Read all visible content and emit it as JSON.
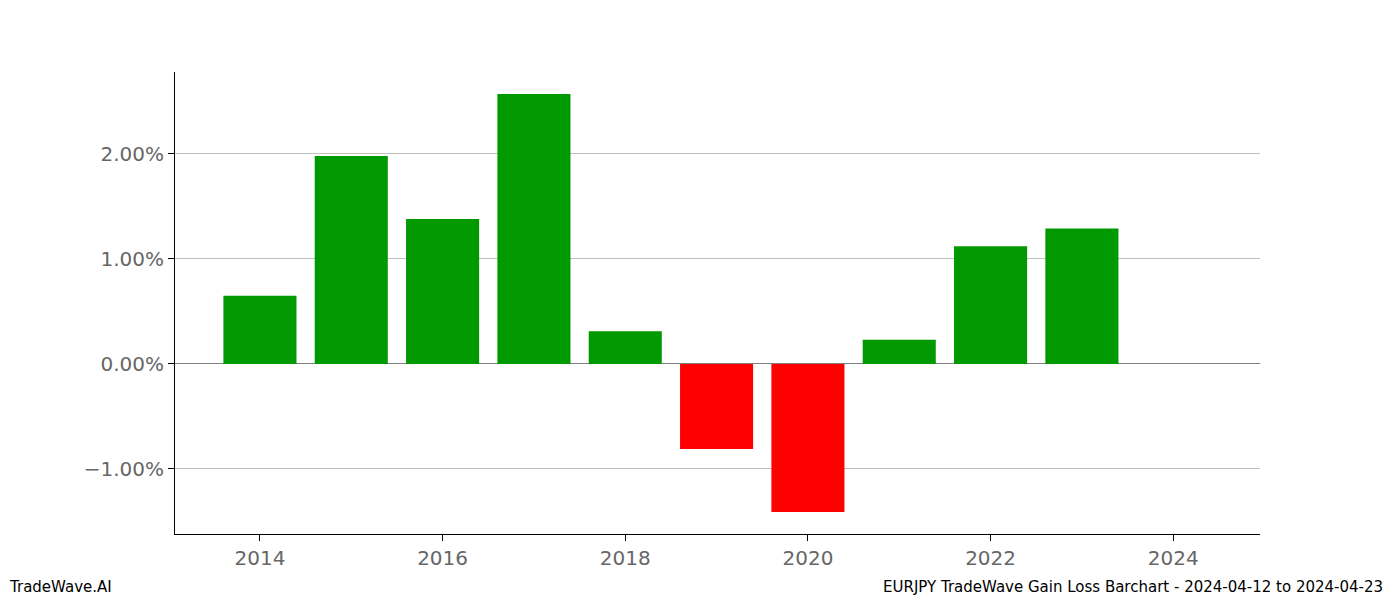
{
  "chart_data": {
    "type": "bar",
    "x": [
      2014,
      2015,
      2016,
      2017,
      2018,
      2019,
      2020,
      2021,
      2022,
      2023
    ],
    "values": [
      0.65,
      1.98,
      1.38,
      2.57,
      0.31,
      -0.81,
      -1.41,
      0.23,
      1.12,
      1.29
    ],
    "colors": [
      "#009900",
      "#009900",
      "#009900",
      "#009900",
      "#009900",
      "#ff0000",
      "#ff0000",
      "#009900",
      "#009900",
      "#009900"
    ],
    "xlim": [
      2013.07,
      2024.95
    ],
    "xticks": [
      2014,
      2016,
      2018,
      2020,
      2022,
      2024
    ],
    "ylim": [
      -1.62,
      2.78
    ],
    "yticks": [
      {
        "value": -1,
        "label": "−1.00%"
      },
      {
        "value": 0,
        "label": "0.00%"
      },
      {
        "value": 1,
        "label": "1.00%"
      },
      {
        "value": 2,
        "label": "2.00%"
      }
    ],
    "grid": "y",
    "annotations": [
      {
        "text": "TradeWave.AI"
      },
      {
        "text": "EURJPY TradeWave Gain Loss Barchart - 2024-04-12 to 2024-04-23"
      }
    ]
  }
}
